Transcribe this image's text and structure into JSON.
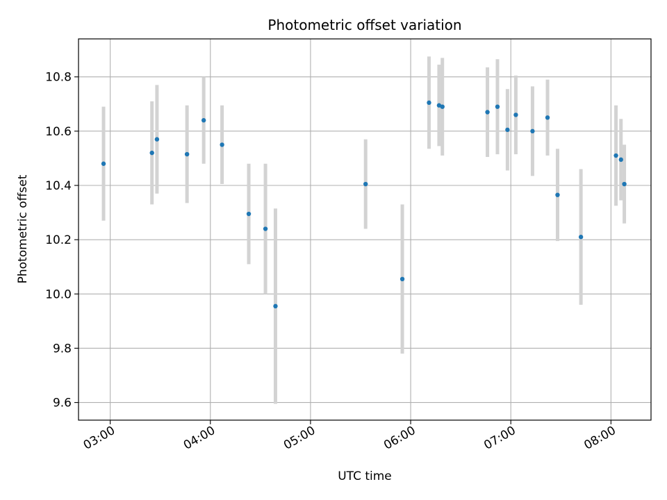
{
  "chart_data": {
    "type": "scatter",
    "title": "Photometric offset variation",
    "xlabel": "UTC time",
    "ylabel": "Photometric offset",
    "xlim": [
      "02:41",
      "08:24"
    ],
    "ylim": [
      9.535,
      10.94
    ],
    "grid": true,
    "x_ticks": [
      "03:00",
      "04:00",
      "05:00",
      "06:00",
      "07:00",
      "08:00"
    ],
    "y_ticks": [
      "9.6",
      "9.8",
      "10.0",
      "10.2",
      "10.4",
      "10.6",
      "10.8"
    ],
    "series": [
      {
        "marker_color": "#1f77b4",
        "errorbar_color": "#d3d3d3",
        "points": [
          {
            "x": "02:56",
            "y": 10.48,
            "err": 0.21
          },
          {
            "x": "03:25",
            "y": 10.52,
            "err": 0.19
          },
          {
            "x": "03:28",
            "y": 10.57,
            "err": 0.2
          },
          {
            "x": "03:46",
            "y": 10.515,
            "err": 0.18
          },
          {
            "x": "03:56",
            "y": 10.64,
            "err": 0.16
          },
          {
            "x": "04:07",
            "y": 10.55,
            "err": 0.145
          },
          {
            "x": "04:23",
            "y": 10.295,
            "err": 0.185
          },
          {
            "x": "04:33",
            "y": 10.24,
            "err": 0.24
          },
          {
            "x": "04:39",
            "y": 9.955,
            "err": 0.36
          },
          {
            "x": "05:33",
            "y": 10.405,
            "err": 0.165
          },
          {
            "x": "05:55",
            "y": 10.055,
            "err": 0.275
          },
          {
            "x": "06:11",
            "y": 10.705,
            "err": 0.17
          },
          {
            "x": "06:17",
            "y": 10.695,
            "err": 0.15
          },
          {
            "x": "06:19",
            "y": 10.69,
            "err": 0.18
          },
          {
            "x": "06:46",
            "y": 10.67,
            "err": 0.165
          },
          {
            "x": "06:52",
            "y": 10.69,
            "err": 0.175
          },
          {
            "x": "06:58",
            "y": 10.605,
            "err": 0.15
          },
          {
            "x": "07:03",
            "y": 10.66,
            "err": 0.145
          },
          {
            "x": "07:13",
            "y": 10.6,
            "err": 0.165
          },
          {
            "x": "07:22",
            "y": 10.65,
            "err": 0.14
          },
          {
            "x": "07:28",
            "y": 10.365,
            "err": 0.17
          },
          {
            "x": "07:42",
            "y": 10.21,
            "err": 0.25
          },
          {
            "x": "08:03",
            "y": 10.51,
            "err": 0.185
          },
          {
            "x": "08:06",
            "y": 10.495,
            "err": 0.15
          },
          {
            "x": "08:08",
            "y": 10.405,
            "err": 0.145
          }
        ]
      }
    ]
  }
}
